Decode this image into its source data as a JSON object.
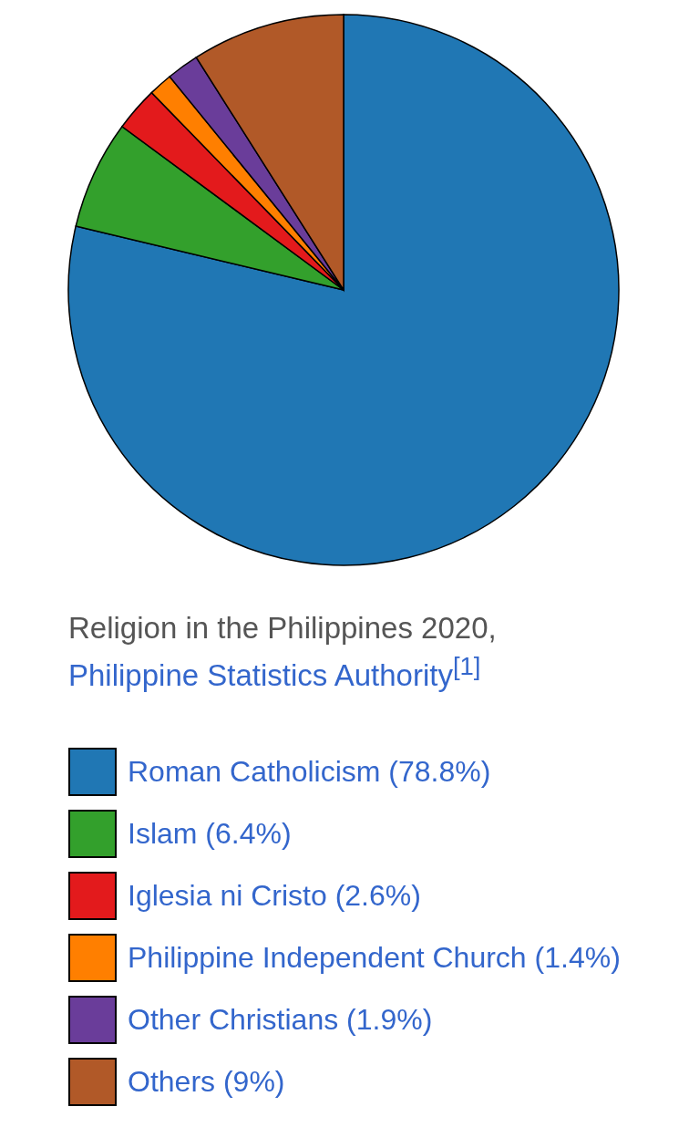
{
  "chart_data": {
    "type": "pie",
    "title": "Religion in the Philippines 2020,",
    "subtitle": "Philippine Statistics Authority$^{[1]}$",
    "categories": [
      "Roman Catholicism",
      "Islam",
      "Iglesia ni Cristo",
      "Philippine Independent Church",
      "Other Christians",
      "Others"
    ],
    "values": [
      78.8,
      6.4,
      2.6,
      1.4,
      1.9,
      9
    ],
    "value_labels": [
      "(78.8%)",
      "(6.4%)",
      "(2.6%)",
      "(1.4%)",
      "(1.9%)",
      "(9%)"
    ],
    "colors": [
      "#2077b4",
      "#33a02c",
      "#e31a1c",
      "#ff7f00",
      "#6a3d9a",
      "#b15928"
    ],
    "legend": "bottom"
  }
}
